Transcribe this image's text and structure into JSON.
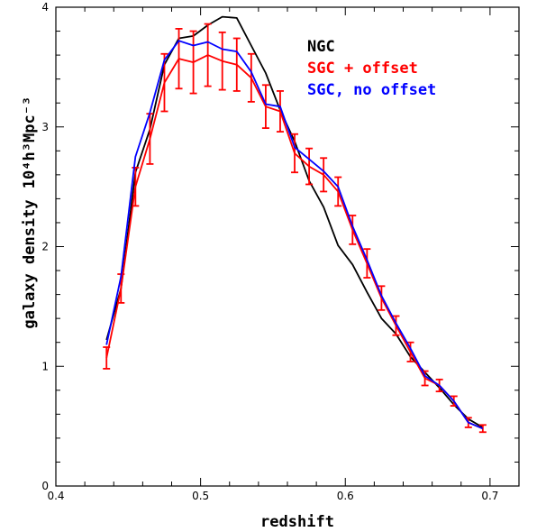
{
  "chart_data": {
    "type": "line",
    "xlabel": "redshift",
    "ylabel_main": "galaxy density",
    "ylabel_unit": "10⁴h³Mpc⁻³",
    "xlim": [
      0.4,
      0.72
    ],
    "ylim": [
      0,
      4
    ],
    "xticks": [
      "0.4",
      "0.5",
      "0.6",
      "0.7"
    ],
    "yticks": [
      "0",
      "1",
      "2",
      "3",
      "4"
    ],
    "legend_position": "top-right",
    "series": [
      {
        "name": "NGC",
        "color": "#000000",
        "x": [
          0.435,
          0.445,
          0.455,
          0.465,
          0.475,
          0.485,
          0.495,
          0.505,
          0.515,
          0.525,
          0.535,
          0.545,
          0.555,
          0.565,
          0.575,
          0.585,
          0.595,
          0.605,
          0.615,
          0.625,
          0.635,
          0.645,
          0.655,
          0.665,
          0.675,
          0.685,
          0.695
        ],
        "values": [
          1.22,
          1.65,
          2.62,
          2.98,
          3.52,
          3.74,
          3.76,
          3.85,
          3.92,
          3.91,
          3.68,
          3.45,
          3.14,
          2.88,
          2.55,
          2.33,
          2.01,
          1.85,
          1.62,
          1.4,
          1.27,
          1.08,
          0.95,
          0.82,
          0.68,
          0.56,
          0.49
        ]
      },
      {
        "name": "SGC + offset",
        "color": "#ff0000",
        "x": [
          0.435,
          0.445,
          0.455,
          0.465,
          0.475,
          0.485,
          0.495,
          0.505,
          0.515,
          0.525,
          0.535,
          0.545,
          0.555,
          0.565,
          0.575,
          0.585,
          0.595,
          0.605,
          0.615,
          0.625,
          0.635,
          0.645,
          0.655,
          0.665,
          0.675,
          0.685,
          0.695
        ],
        "values": [
          1.07,
          1.65,
          2.5,
          2.9,
          3.37,
          3.57,
          3.54,
          3.6,
          3.55,
          3.52,
          3.41,
          3.17,
          3.13,
          2.78,
          2.67,
          2.6,
          2.46,
          2.14,
          1.86,
          1.57,
          1.34,
          1.12,
          0.9,
          0.84,
          0.71,
          0.53,
          0.48
        ],
        "errors": [
          0.09,
          0.12,
          0.16,
          0.21,
          0.24,
          0.25,
          0.26,
          0.26,
          0.24,
          0.22,
          0.2,
          0.18,
          0.17,
          0.16,
          0.15,
          0.14,
          0.12,
          0.12,
          0.12,
          0.1,
          0.08,
          0.08,
          0.06,
          0.05,
          0.04,
          0.04,
          0.03
        ]
      },
      {
        "name": "SGC, no offset",
        "color": "#0000ff",
        "x": [
          0.435,
          0.445,
          0.455,
          0.465,
          0.475,
          0.485,
          0.495,
          0.505,
          0.515,
          0.525,
          0.535,
          0.545,
          0.555,
          0.565,
          0.575,
          0.585,
          0.595,
          0.605,
          0.615,
          0.625,
          0.635,
          0.645,
          0.655,
          0.665,
          0.675,
          0.685,
          0.695
        ],
        "values": [
          1.18,
          1.75,
          2.75,
          3.12,
          3.56,
          3.72,
          3.68,
          3.71,
          3.65,
          3.63,
          3.46,
          3.19,
          3.17,
          2.83,
          2.73,
          2.63,
          2.5,
          2.17,
          1.89,
          1.59,
          1.36,
          1.15,
          0.92,
          0.84,
          0.71,
          0.53,
          0.48
        ]
      }
    ]
  }
}
